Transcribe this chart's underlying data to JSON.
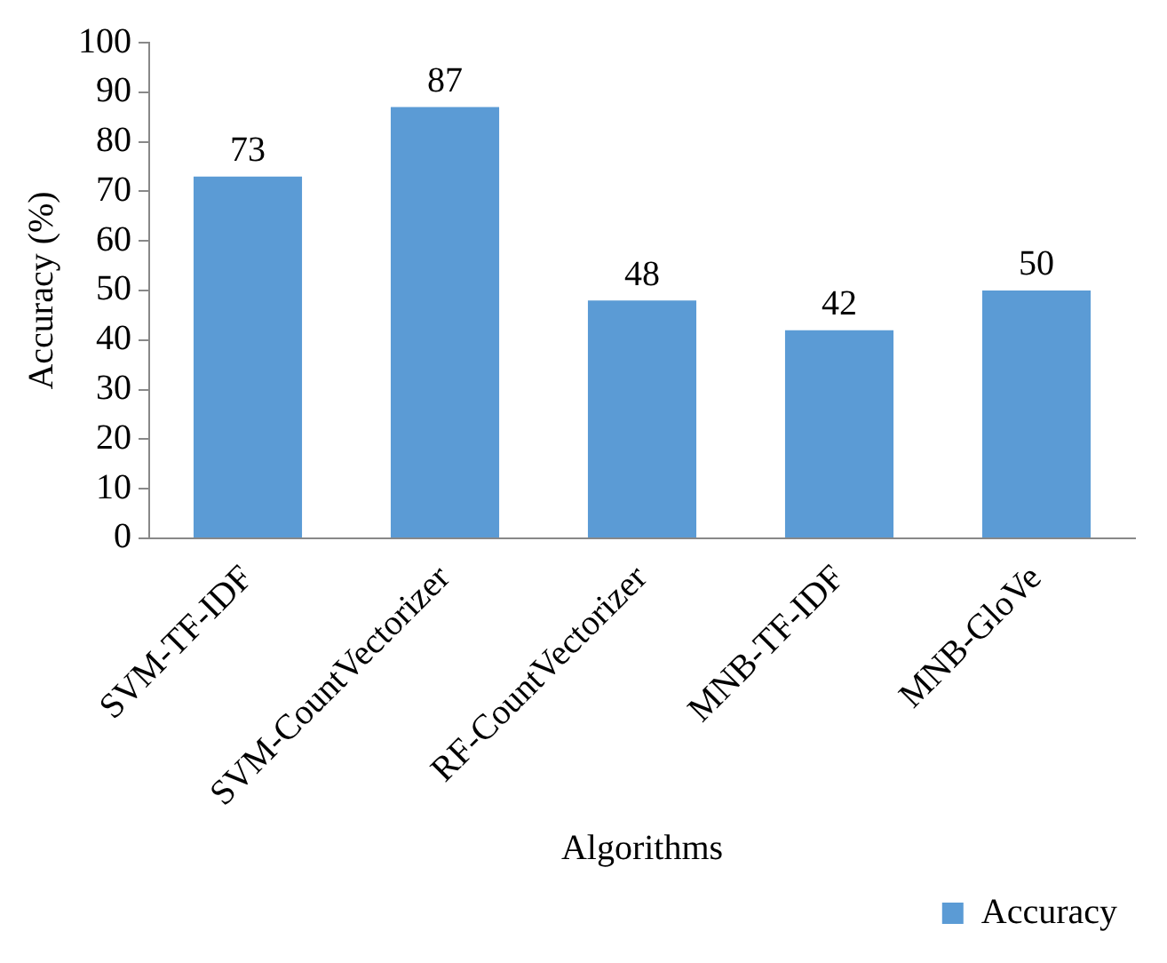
{
  "chart_data": {
    "type": "bar",
    "xlabel": "Algorithms",
    "ylabel": "Accuracy (%)",
    "categories": [
      "SVM-TF-IDF",
      "SVM-CountVectorizer",
      "RF-CountVectorizer",
      "MNB-TF-IDF",
      "MNB-GloVe"
    ],
    "series": [
      {
        "name": "Accuracy",
        "color": "#5b9bd5",
        "values": [
          73,
          87,
          48,
          42,
          50
        ]
      }
    ],
    "ylim": [
      0,
      100
    ],
    "yticks": [
      0,
      10,
      20,
      30,
      40,
      50,
      60,
      70,
      80,
      90,
      100
    ],
    "grid": false,
    "legend": "bottom right",
    "data_labels": true
  }
}
